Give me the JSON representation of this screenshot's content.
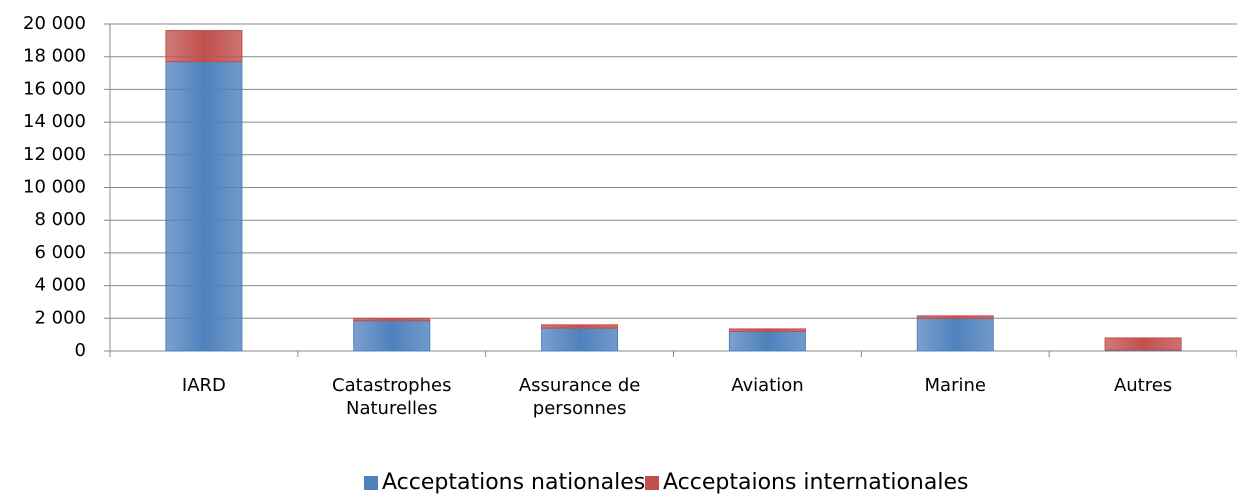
{
  "chart_data": {
    "type": "stacked_bar",
    "categories": [
      "IARD",
      "Catastrophes Naturelles",
      "Assurance de personnes",
      "Aviation",
      "Marine",
      "Autres"
    ],
    "series": [
      {
        "name": "Acceptations nationales",
        "color": "#4f81bd",
        "values": [
          17700,
          1850,
          1400,
          1200,
          2000,
          50
        ]
      },
      {
        "name": "Acceptaions internationales",
        "color": "#c0504d",
        "values": [
          1900,
          150,
          200,
          150,
          150,
          750
        ]
      }
    ],
    "ylim": [
      0,
      20000
    ],
    "yticks": [
      0,
      {
        "value": 2000,
        "label": "2 000"
      },
      {
        "value": 4000,
        "label": "4 000"
      },
      {
        "value": 6000,
        "label": "6 000"
      },
      {
        "value": 8000,
        "label": "8 000"
      },
      {
        "value": 10000,
        "label": "10 000"
      },
      {
        "value": 12000,
        "label": "12 000"
      },
      {
        "value": 14000,
        "label": "14 000"
      },
      {
        "value": 16000,
        "label": "16 000"
      },
      {
        "value": 18000,
        "label": "18 000"
      },
      {
        "value": 20000,
        "label": "20 000"
      }
    ],
    "grid": true,
    "legend": "bottom"
  }
}
